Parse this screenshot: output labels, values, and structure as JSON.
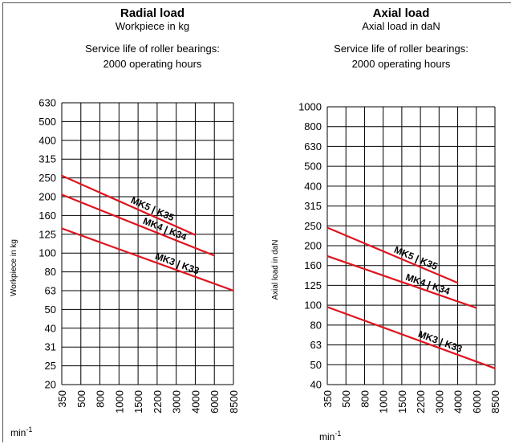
{
  "chart_data": [
    {
      "type": "line",
      "title": "Radial load",
      "subtitle": "Workpiece in kg",
      "note_line1": "Service life of roller bearings:",
      "note_line2": "2000 operating hours",
      "ylabel": "Workpiece in kg",
      "xunit_base": "min",
      "xunit_sup": "-1",
      "x_ticks": [
        "350",
        "500",
        "800",
        "1000",
        "1500",
        "2200",
        "3000",
        "4000",
        "6000",
        "8500"
      ],
      "y_ticks": [
        "20",
        "25",
        "31",
        "40",
        "50",
        "63",
        "80",
        "100",
        "125",
        "160",
        "200",
        "250",
        "315",
        "400",
        "500",
        "630"
      ],
      "y_scale": "log",
      "grid": true,
      "series": [
        {
          "name": "MK5 | K35",
          "x": [
            350,
            4000
          ],
          "y": [
            257,
            124
          ]
        },
        {
          "name": "MK4 | K34",
          "x": [
            350,
            6000
          ],
          "y": [
            205,
            97
          ]
        },
        {
          "name": "MK3 | K33",
          "x": [
            350,
            8500
          ],
          "y": [
            135,
            63
          ]
        }
      ]
    },
    {
      "type": "line",
      "title": "Axial load",
      "subtitle": "Axial load in daN",
      "note_line1": "Service life of roller bearings:",
      "note_line2": "2000 operating hours",
      "ylabel": "Axial load in daN",
      "xunit_base": "min",
      "xunit_sup": "-1",
      "x_ticks": [
        "350",
        "500",
        "800",
        "1000",
        "1500",
        "2200",
        "3000",
        "4000",
        "6000",
        "8500"
      ],
      "y_ticks": [
        "40",
        "50",
        "63",
        "80",
        "100",
        "125",
        "160",
        "200",
        "250",
        "315",
        "400",
        "500",
        "630",
        "800",
        "1000"
      ],
      "y_scale": "log",
      "grid": true,
      "series": [
        {
          "name": "MK5 | K35",
          "x": [
            350,
            4000
          ],
          "y": [
            245,
            129
          ]
        },
        {
          "name": "MK4 | K34",
          "x": [
            350,
            6000
          ],
          "y": [
            178,
            97
          ]
        },
        {
          "name": "MK3 | K33",
          "x": [
            350,
            8500
          ],
          "y": [
            98,
            48
          ]
        }
      ]
    }
  ],
  "colors": {
    "line": "#e0141e",
    "grid": "#000000"
  }
}
